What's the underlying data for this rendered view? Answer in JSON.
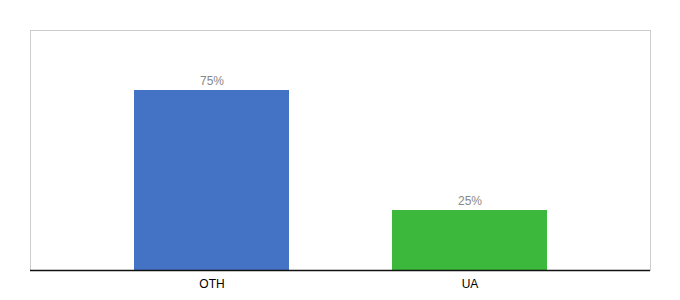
{
  "chart_data": {
    "type": "bar",
    "categories": [
      "OTH",
      "UA"
    ],
    "values": [
      75,
      25
    ],
    "value_labels": [
      "75%",
      "25%"
    ],
    "colors": [
      "#4472C4",
      "#3CB83C"
    ],
    "ylim": [
      0,
      100
    ],
    "data_labels": true,
    "tick_labels": "x"
  }
}
